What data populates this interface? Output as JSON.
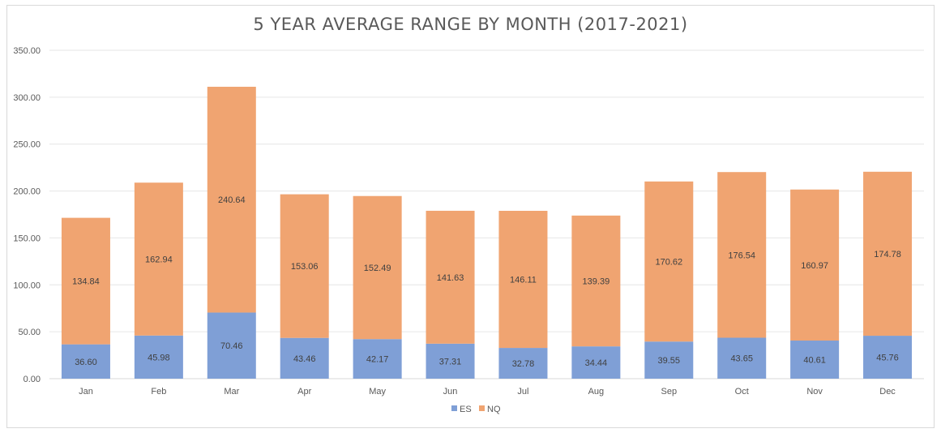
{
  "chart_data": {
    "type": "bar",
    "stacked": true,
    "title": "5 YEAR AVERAGE RANGE BY MONTH (2017-2021)",
    "categories": [
      "Jan",
      "Feb",
      "Mar",
      "Apr",
      "May",
      "Jun",
      "Jul",
      "Aug",
      "Sep",
      "Oct",
      "Nov",
      "Dec"
    ],
    "series": [
      {
        "name": "ES",
        "color": "#7f9fd6",
        "values": [
          36.6,
          45.98,
          70.46,
          43.46,
          42.17,
          37.31,
          32.78,
          34.44,
          39.55,
          43.65,
          40.61,
          45.76
        ]
      },
      {
        "name": "NQ",
        "color": "#f0a471",
        "values": [
          134.84,
          162.94,
          240.64,
          153.06,
          152.49,
          141.63,
          146.11,
          139.39,
          170.62,
          176.54,
          160.97,
          174.78
        ]
      }
    ],
    "ylim": [
      0,
      350
    ],
    "yticks": [
      "0.00",
      "50.00",
      "100.00",
      "150.00",
      "200.00",
      "250.00",
      "300.00",
      "350.00"
    ],
    "grid": true,
    "legend_position": "bottom"
  }
}
